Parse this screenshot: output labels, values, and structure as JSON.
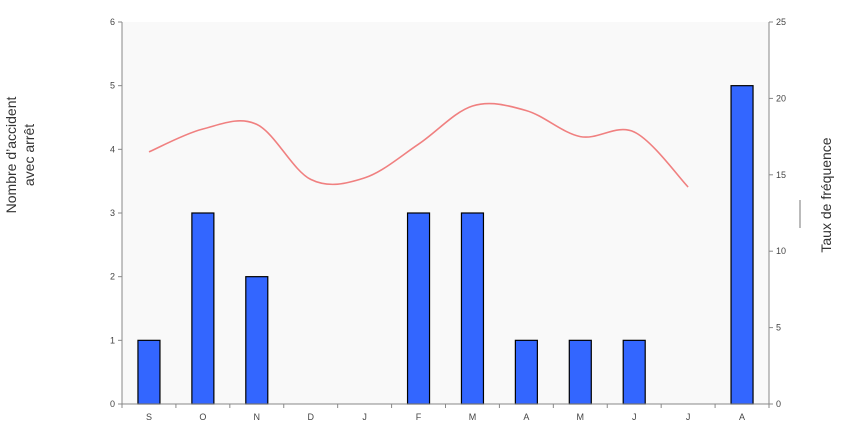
{
  "chart_data": {
    "type": "bar",
    "categories": [
      "S",
      "O",
      "N",
      "D",
      "J",
      "F",
      "M",
      "A",
      "M",
      "J",
      "J",
      "A"
    ],
    "series": [
      {
        "name": "Nombre d'accident avec arrêt",
        "type": "bar",
        "axis": "left",
        "values": [
          1,
          3,
          2,
          0,
          0,
          3,
          3,
          1,
          1,
          1,
          0,
          5
        ]
      },
      {
        "name": "Taux de fréquence",
        "type": "line",
        "axis": "right",
        "values": [
          16.5,
          18,
          18.3,
          14.7,
          14.8,
          17,
          19.5,
          19.2,
          17.5,
          17.8,
          14.2,
          null
        ]
      }
    ],
    "ylabel_left_lines": [
      "Nombre d’accident",
      "avec arrêt"
    ],
    "ylabel_right": "Taux de fréquence",
    "ylim_left": [
      0,
      6
    ],
    "yticks_left": [
      0,
      1,
      2,
      3,
      4,
      5,
      6
    ],
    "ylim_right": [
      0,
      25
    ],
    "yticks_right": [
      0,
      5,
      10,
      15,
      20,
      25
    ],
    "colors": {
      "bars": "#3366ff",
      "bar_outline": "#000000",
      "line": "#f08080",
      "plot_bg": "#f9f9f9",
      "axis": "#888888"
    }
  }
}
